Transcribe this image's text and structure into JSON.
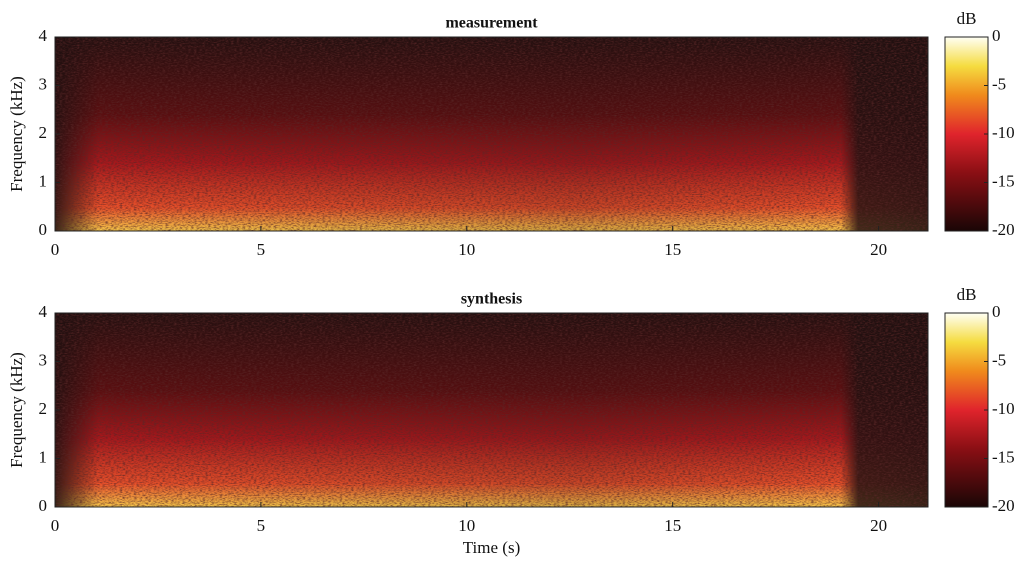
{
  "chart_data": [
    {
      "type": "heatmap",
      "title": "measurement",
      "ylabel": "Frequency (kHz)",
      "xlim": [
        0,
        21.2
      ],
      "ylim": [
        0,
        4
      ],
      "xticks": [
        0,
        5,
        10,
        15,
        20
      ],
      "yticks": [
        0,
        1,
        2,
        3,
        4
      ],
      "colormap": "hot",
      "colorbar": {
        "label": "dB",
        "lim": [
          -20,
          0
        ],
        "ticks": [
          0,
          -5,
          -10,
          -15,
          -20
        ]
      }
    },
    {
      "type": "heatmap",
      "title": "synthesis",
      "ylabel": "Frequency (kHz)",
      "xlabel": "Time (s)",
      "xlim": [
        0,
        21.2
      ],
      "ylim": [
        0,
        4
      ],
      "xticks": [
        0,
        5,
        10,
        15,
        20
      ],
      "yticks": [
        0,
        1,
        2,
        3,
        4
      ],
      "colormap": "hot",
      "colorbar": {
        "label": "dB",
        "lim": [
          -20,
          0
        ],
        "ticks": [
          0,
          -5,
          -10,
          -15,
          -20
        ]
      }
    }
  ]
}
